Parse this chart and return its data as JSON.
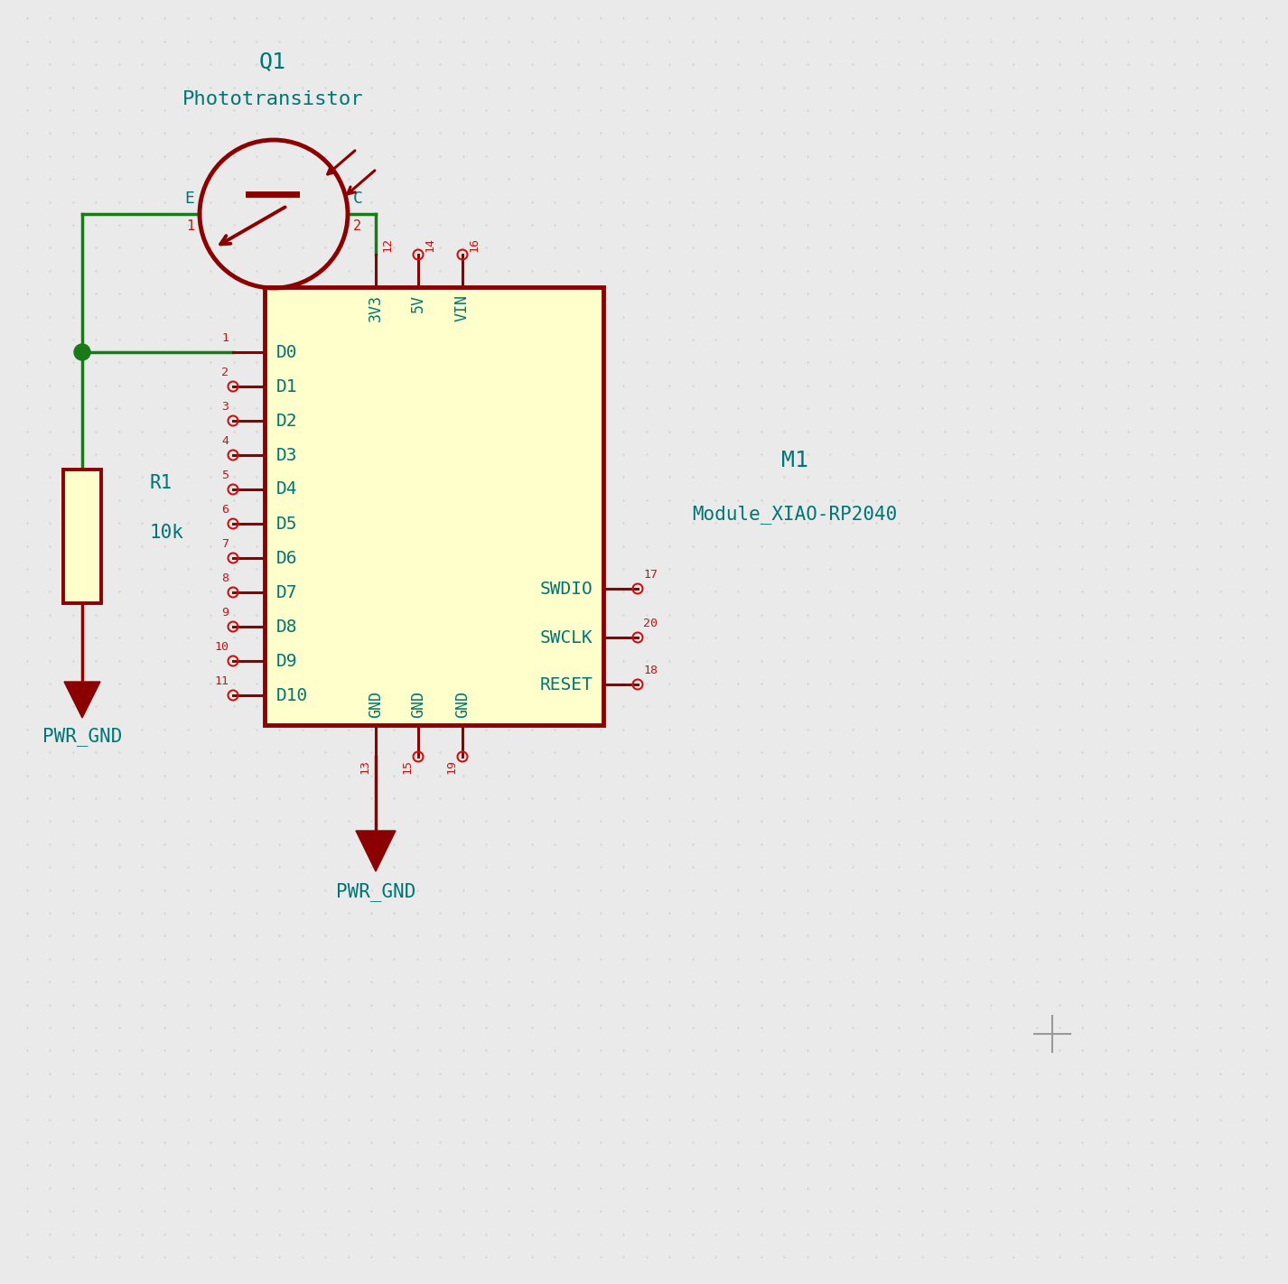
{
  "bg_color": "#EAEAEA",
  "dot_color": "#C8C8C8",
  "green": "#1A7A1A",
  "dark_red": "#8B0000",
  "teal": "#007575",
  "red_pin": "#CC1111",
  "ic_fill": "#FFFFCC",
  "ic_border": "#8B0000",
  "res_fill": "#FFFFCC",
  "res_border": "#8B0000",
  "title_q1": "Q1",
  "title_phototransistor": "Phototransistor",
  "title_r1": "R1",
  "title_10k": "10k",
  "title_m1": "M1",
  "title_module": "Module_XIAO-RP2040",
  "pwr_gnd": "PWR_GND",
  "left_pins": [
    "D0",
    "D1",
    "D2",
    "D3",
    "D4",
    "D5",
    "D6",
    "D7",
    "D8",
    "D9",
    "D10"
  ],
  "left_pin_nums": [
    "1",
    "2",
    "3",
    "4",
    "5",
    "6",
    "7",
    "8",
    "9",
    "10",
    "11"
  ],
  "right_pins": [
    "SWDIO",
    "SWCLK",
    "RESET"
  ],
  "right_pin_nums": [
    "17",
    "20",
    "18"
  ],
  "top_pins": [
    "3V3",
    "5V",
    "VIN"
  ],
  "top_pin_nums": [
    "12",
    "14",
    "16"
  ],
  "bot_pins": [
    "GND",
    "GND",
    "GND"
  ],
  "bot_pin_nums": [
    "13",
    "15",
    "19"
  ]
}
